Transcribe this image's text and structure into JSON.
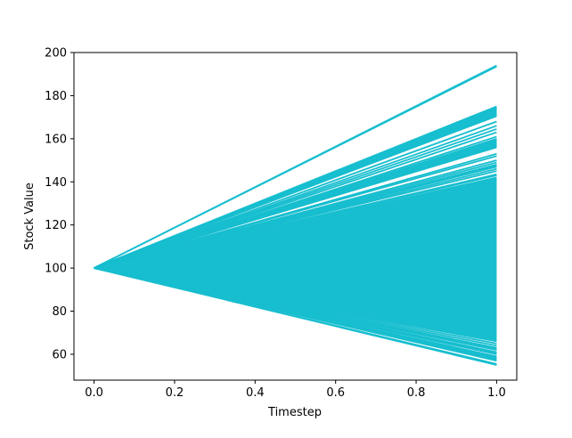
{
  "chart_data": {
    "type": "line",
    "title": "",
    "xlabel": "Timestep",
    "ylabel": "Stock Value",
    "xlim": [
      -0.05,
      1.05
    ],
    "ylim": [
      48,
      200
    ],
    "x_ticks": [
      {
        "value": 0.0,
        "label": "0.0"
      },
      {
        "value": 0.2,
        "label": "0.2"
      },
      {
        "value": 0.4,
        "label": "0.4"
      },
      {
        "value": 0.6,
        "label": "0.6"
      },
      {
        "value": 0.8,
        "label": "0.8"
      },
      {
        "value": 1.0,
        "label": "1.0"
      }
    ],
    "y_ticks": [
      {
        "value": 60,
        "label": "60"
      },
      {
        "value": 80,
        "label": "80"
      },
      {
        "value": 100,
        "label": "100"
      },
      {
        "value": 120,
        "label": "120"
      },
      {
        "value": 140,
        "label": "140"
      },
      {
        "value": 160,
        "label": "160"
      },
      {
        "value": 180,
        "label": "180"
      },
      {
        "value": 200,
        "label": "200"
      }
    ],
    "grid": false,
    "legend": "none",
    "line_color": "#17becf",
    "x": [
      0.0,
      1.0
    ],
    "series_start_value": 100,
    "series_end_values": [
      194,
      193.5,
      175,
      174.5,
      174,
      173.5,
      173,
      172.5,
      172,
      171.5,
      171,
      170.5,
      168,
      166,
      164.5,
      163,
      161,
      160,
      159.5,
      159,
      158.5,
      158,
      157.5,
      157,
      156.5,
      156,
      153,
      152,
      150,
      149,
      148,
      147.5,
      147,
      146,
      145,
      143.5,
      143,
      142,
      141,
      140,
      139,
      138,
      137,
      136,
      135,
      134,
      133,
      132,
      131,
      130,
      129,
      128,
      127,
      126,
      125,
      124,
      123,
      122,
      121,
      120,
      119,
      118,
      117,
      116,
      115,
      114,
      113,
      112,
      111,
      110,
      109,
      108,
      107,
      106,
      105,
      104,
      103,
      102,
      101,
      100,
      99,
      98,
      97,
      96,
      95,
      94,
      93,
      92,
      91,
      90,
      89,
      88,
      87,
      86,
      85,
      84,
      83,
      82,
      81,
      80,
      79,
      78,
      77,
      76,
      75,
      74,
      73,
      72,
      71,
      70,
      69,
      68,
      67,
      66,
      65,
      64,
      63,
      62.5,
      62,
      61,
      60.5,
      60,
      59,
      58.5,
      58,
      57.5,
      57,
      55.5,
      55
    ]
  }
}
